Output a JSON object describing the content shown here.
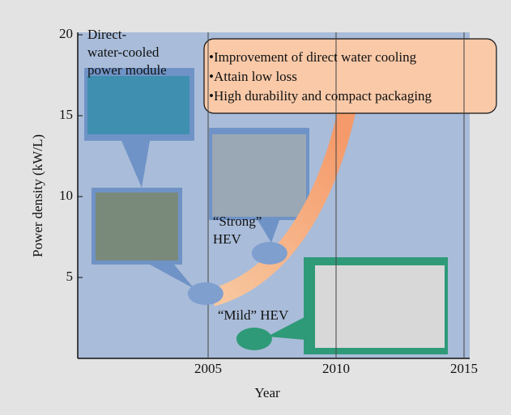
{
  "chart_data": {
    "type": "scatter",
    "x_label": "Year",
    "y_label": "Power density (kW/L)",
    "xlim": [
      2000,
      2015
    ],
    "ylim": [
      0,
      20
    ],
    "xticks": [
      2005,
      2010,
      2015
    ],
    "yticks": [
      5,
      10,
      15,
      20
    ],
    "points": [
      {
        "x": 2004.9,
        "y": 4,
        "color": "#7f9fcf"
      },
      {
        "x": 2007.4,
        "y": 6.5,
        "color": "#7f9fcf",
        "label": [
          "“Strong”",
          "HEV"
        ]
      },
      {
        "x": 2006.8,
        "y": 1.2,
        "color": "#2f9a78",
        "label": [
          "“Mild” HEV"
        ]
      }
    ],
    "module_label": [
      "Direct-",
      "water-cooled",
      "power module"
    ],
    "improvements": [
      "•Improvement of direct water cooling",
      "•Attain low loss",
      "•High durability and compact packaging"
    ]
  }
}
